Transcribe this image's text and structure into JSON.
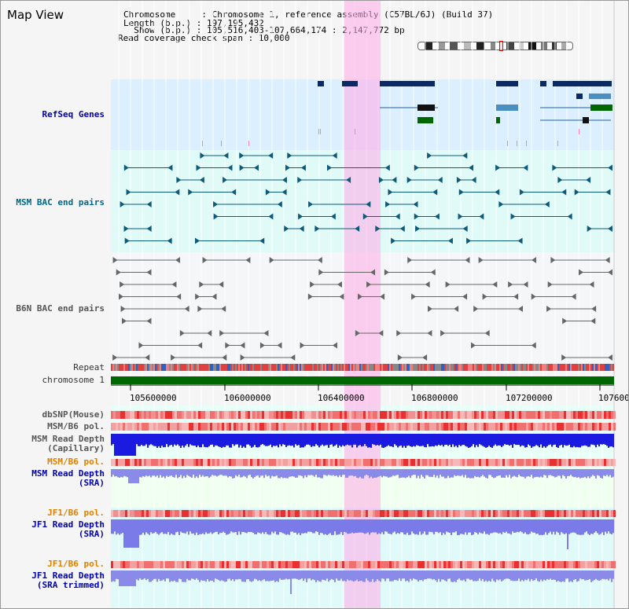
{
  "title": "Map View",
  "header": {
    "lines": [
      "Chromosome     : Chromosome 1, reference assembly (C57BL/6J) (Build 37)",
      "Length (b.p.) : 197,195,432",
      "  Show (b.p.) : 105,516,403-107,664,174 : 2,147,772 bp",
      "Read coverage check span : 10,000"
    ]
  },
  "tracks": {
    "refseq": "RefSeq Genes",
    "msm_bac": "MSM BAC end pairs",
    "b6n_bac": "B6N BAC end pairs",
    "repeat": "Repeat",
    "chromosome": "chromosome 1",
    "dbsnp": "dbSNP(Mouse)",
    "msm_b6_pol_1": "MSM/B6 pol.",
    "msm_depth_cap": "MSM Read Depth\n(Capillary)",
    "msm_b6_pol_2": "MSM/B6 pol.",
    "msm_depth_sra": "MSM Read Depth\n(SRA)",
    "jf1_b6_pol_1": "JF1/B6 pol.",
    "jf1_depth_sra": "JF1 Read Depth\n(SRA)",
    "jf1_b6_pol_2": "JF1/B6 pol.",
    "jf1_depth_trim": "JF1 Read Depth\n(SRA trimmed)"
  },
  "axis": {
    "ticks": [
      "105600000",
      "106000000",
      "106400000",
      "106800000",
      "107200000",
      "107600"
    ]
  },
  "colors": {
    "refseq_label": "#0000aa",
    "msm_label": "#006688",
    "pol_orange": "#e08000",
    "depth_blue": "#0000aa",
    "highlight": "#ffaaee"
  }
}
